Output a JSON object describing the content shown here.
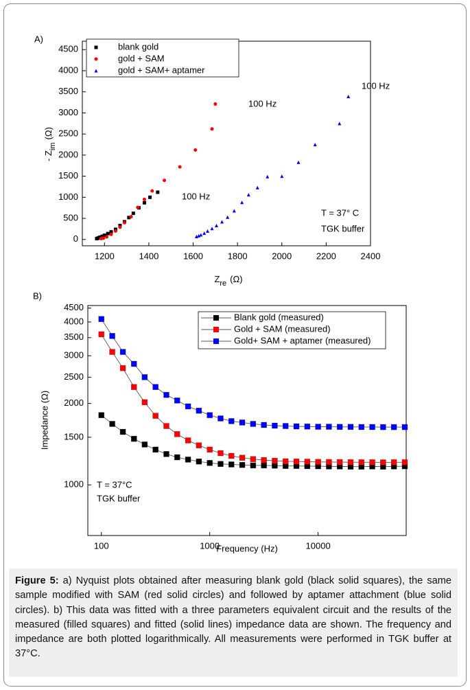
{
  "chart_data": [
    {
      "type": "scatter",
      "panel_label": "A)",
      "xlabel": {
        "text": "Z",
        "sub": "re",
        "unit": "(Ω)"
      },
      "ylabel": {
        "text": "- Z",
        "sub": "im",
        "unit": "(Ω)"
      },
      "xlim": [
        1100,
        2400
      ],
      "ylim": [
        -150,
        4700
      ],
      "xticks": [
        1200,
        1400,
        1600,
        1800,
        2000,
        2200,
        2400
      ],
      "yticks": [
        0,
        500,
        1000,
        1500,
        2000,
        2500,
        3000,
        3500,
        4000,
        4500
      ],
      "legend": "upper left",
      "annotations": [
        "100 Hz",
        "100 Hz",
        "100 Hz",
        "T = 37° C",
        "TGK buffer"
      ],
      "series": [
        {
          "name": "blank gold",
          "color": "#000000",
          "marker": "square",
          "x": [
            1165,
            1170,
            1175,
            1180,
            1190,
            1200,
            1215,
            1230,
            1250,
            1270,
            1290,
            1310,
            1330,
            1355,
            1380,
            1405,
            1440
          ],
          "values": [
            20,
            30,
            40,
            55,
            75,
            100,
            140,
            180,
            240,
            330,
            420,
            520,
            620,
            750,
            870,
            1000,
            1120
          ]
        },
        {
          "name": "gold + SAM",
          "color": "#ff0000",
          "marker": "circle",
          "x": [
            1185,
            1195,
            1210,
            1230,
            1250,
            1270,
            1290,
            1320,
            1350,
            1380,
            1415,
            1470,
            1540,
            1610,
            1685,
            1700
          ],
          "values": [
            20,
            30,
            60,
            120,
            200,
            290,
            400,
            540,
            760,
            950,
            1150,
            1400,
            1720,
            2120,
            2620,
            3210
          ]
        },
        {
          "name": "gold + SAM+  aptamer",
          "color": "#0000ff",
          "marker": "triangle",
          "x": [
            1615,
            1625,
            1635,
            1650,
            1665,
            1685,
            1705,
            1730,
            1755,
            1785,
            1820,
            1850,
            1890,
            1935,
            2000,
            2075,
            2150,
            2260,
            2300
          ],
          "values": [
            70,
            90,
            110,
            150,
            200,
            260,
            330,
            420,
            530,
            680,
            880,
            1060,
            1230,
            1490,
            1500,
            1830,
            2250,
            2750,
            3390
          ]
        }
      ]
    },
    {
      "type": "line",
      "panel_label": "B)",
      "xscale": "log",
      "yscale": "log",
      "xlabel": "Frequency (Hz)",
      "ylabel": "Impedance (Ω)",
      "xlim": [
        75,
        65000
      ],
      "ylim": [
        650,
        4600
      ],
      "xticks": [
        100,
        1000,
        10000
      ],
      "yticks": [
        1000,
        1500,
        2000,
        2500,
        3000,
        3500,
        4000,
        4500
      ],
      "legend": "upper right",
      "annotations": [
        "T = 37°C",
        "TGK buffer"
      ],
      "x": [
        100,
        126,
        158,
        200,
        251,
        316,
        398,
        501,
        631,
        794,
        1000,
        1259,
        1585,
        1995,
        2512,
        3162,
        3981,
        5012,
        6310,
        7943,
        10000,
        12589,
        15849,
        19953,
        25119,
        31623,
        39811,
        50119,
        63096
      ],
      "series": [
        {
          "name": "Blank gold (measured)",
          "color": "#000000",
          "values": [
            1810,
            1680,
            1570,
            1480,
            1410,
            1350,
            1300,
            1265,
            1240,
            1220,
            1205,
            1195,
            1190,
            1185,
            1180,
            1180,
            1178,
            1175,
            1175,
            1173,
            1172,
            1170,
            1170,
            1168,
            1168,
            1170,
            1168,
            1170,
            1172
          ]
        },
        {
          "name": "Gold + SAM (measured)",
          "color": "#ff0000",
          "values": [
            3600,
            3100,
            2700,
            2300,
            2020,
            1800,
            1650,
            1540,
            1460,
            1400,
            1350,
            1310,
            1280,
            1260,
            1245,
            1235,
            1228,
            1222,
            1220,
            1218,
            1216,
            1215,
            1214,
            1213,
            1212,
            1212,
            1211,
            1212,
            1212
          ]
        },
        {
          "name": "Gold+ SAM + aptamer (measured)",
          "color": "#0000ff",
          "values": [
            4100,
            3550,
            3100,
            2800,
            2500,
            2300,
            2150,
            2050,
            1950,
            1880,
            1810,
            1760,
            1720,
            1700,
            1680,
            1665,
            1655,
            1650,
            1645,
            1643,
            1640,
            1640,
            1638,
            1638,
            1636,
            1636,
            1635,
            1635,
            1635
          ]
        }
      ]
    }
  ],
  "caption": {
    "label": "Figure 5:",
    "text": " a) Nyquist plots obtained after measuring blank gold (black solid squares), the same sample modified with SAM (red solid circles) and followed by aptamer attachment (blue solid circles). b) This data was fitted with a three parameters equivalent circuit and the results of the measured (filled squares) and fitted (solid lines) impedance data are shown. The frequency and impedance are both plotted logarithmically. All measurements were performed in TGK buffer at 37°C."
  }
}
